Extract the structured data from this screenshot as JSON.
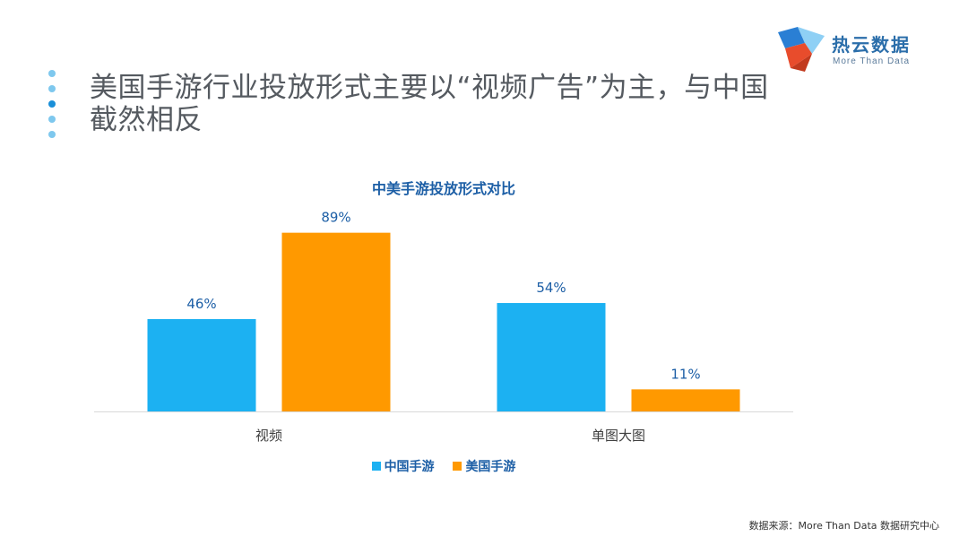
{
  "header": {
    "title": "美国手游行业投放形式主要以“视频广告”为主，与中国截然相反"
  },
  "logo": {
    "name": "热云数据",
    "tagline": "More Than Data",
    "colors": [
      "#e84c2c",
      "#2a7fd4",
      "#8fd0f5"
    ]
  },
  "footer": {
    "source": "数据来源：More Than Data 数据研究中心"
  },
  "chart_data": {
    "type": "bar",
    "title": "中美手游投放形式对比",
    "categories": [
      "视频",
      "单图大图"
    ],
    "series": [
      {
        "name": "中国手游",
        "values": [
          46,
          54
        ],
        "labels": [
          "46%",
          "54%"
        ],
        "color": "#1cb1f2"
      },
      {
        "name": "美国手游",
        "values": [
          89,
          11
        ],
        "labels": [
          "89%",
          "11%"
        ],
        "color": "#ff9900"
      }
    ],
    "ylim": [
      0,
      100
    ],
    "grid": false,
    "legend": "bottom"
  }
}
